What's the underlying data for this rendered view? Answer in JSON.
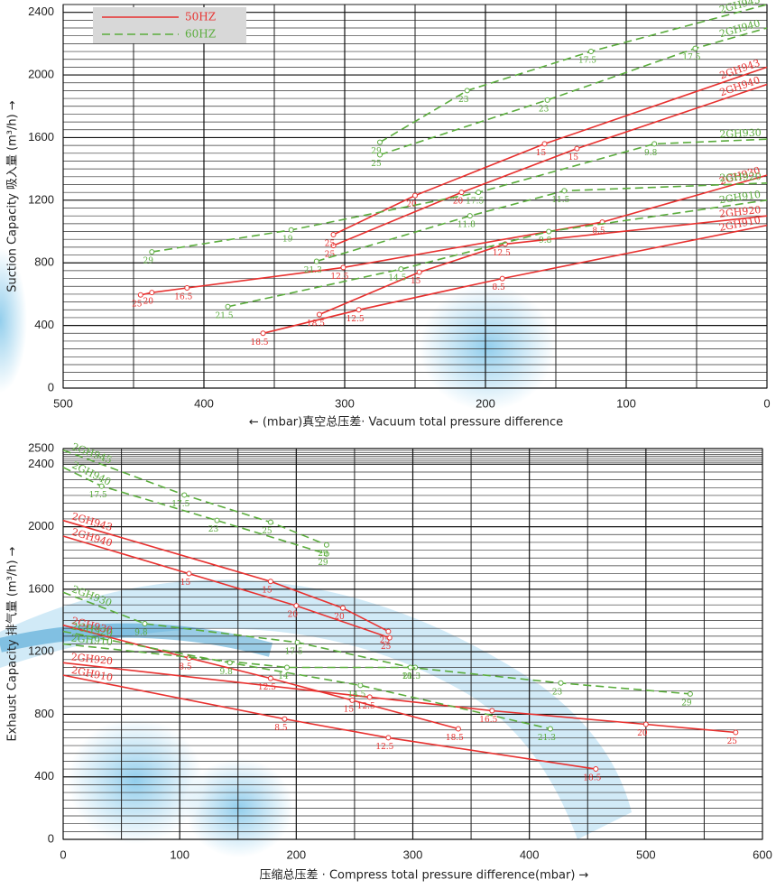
{
  "chart_data": [
    {
      "type": "line",
      "x_label": "← (mbar)真空总压差· Vacuum total pressure difference",
      "y_label": "Suction Capacity 吸入量 (m³/h) →",
      "xlim": [
        500,
        0
      ],
      "xticks": [
        500,
        400,
        300,
        200,
        100,
        0
      ],
      "ylim": [
        0,
        2450
      ],
      "yticks": [
        0,
        400,
        800,
        1200,
        1600,
        2000,
        2400
      ],
      "x_minor": 2,
      "y_minor": 8,
      "grid": true,
      "series_name_at": "end",
      "legend": {
        "position": "top-left",
        "entries": [
          {
            "name": "50HZ",
            "color": "#e8312f",
            "dashed": false
          },
          {
            "name": "60HZ",
            "color": "#5aac3c",
            "dashed": true
          }
        ]
      },
      "series": [
        {
          "name": "2GH910",
          "color": "#e8312f",
          "dashed": false,
          "x": [
            358,
            290,
            188,
            0
          ],
          "values": [
            350,
            500,
            700,
            1040
          ],
          "point_labels": [
            "18.5",
            "12.5",
            "8.5",
            null
          ]
        },
        {
          "name": "2GH920",
          "color": "#e8312f",
          "dashed": false,
          "x": [
            318,
            247,
            186,
            0
          ],
          "values": [
            470,
            740,
            920,
            1100
          ],
          "point_labels": [
            "18.5",
            "15",
            "12.5",
            null
          ]
        },
        {
          "name": "2GH930",
          "color": "#e8312f",
          "dashed": false,
          "x": [
            445,
            437,
            412,
            301,
            117,
            0
          ],
          "values": [
            595,
            610,
            640,
            770,
            1060,
            1360
          ],
          "point_labels": [
            "25",
            "20",
            "16.5",
            "12.5",
            "8.5",
            null
          ]
        },
        {
          "name": "2GH940",
          "color": "#e8312f",
          "dashed": false,
          "x": [
            308,
            217,
            135,
            0
          ],
          "values": [
            910,
            1250,
            1530,
            1940
          ],
          "point_labels": [
            "25",
            "20",
            "15",
            null
          ]
        },
        {
          "name": "2GH943",
          "color": "#e8312f",
          "dashed": false,
          "x": [
            308,
            250,
            158,
            0
          ],
          "values": [
            980,
            1230,
            1560,
            2050
          ],
          "point_labels": [
            "25",
            "20",
            "15",
            null
          ]
        },
        {
          "name": "2GH910",
          "color": "#5aac3c",
          "dashed": true,
          "x": [
            383,
            260,
            155,
            0
          ],
          "values": [
            520,
            760,
            1000,
            1200
          ],
          "point_labels": [
            "21.5",
            "14.5",
            "9.8",
            null
          ]
        },
        {
          "name": "2GH920",
          "color": "#5aac3c",
          "dashed": true,
          "x": [
            320,
            211,
            144,
            0
          ],
          "values": [
            810,
            1100,
            1260,
            1310
          ],
          "point_labels": [
            "21.3",
            "11.8",
            "11.5",
            null
          ]
        },
        {
          "name": "2GH930",
          "color": "#5aac3c",
          "dashed": true,
          "x": [
            437,
            338,
            205,
            80,
            0
          ],
          "values": [
            870,
            1010,
            1250,
            1560,
            1590
          ],
          "point_labels": [
            "29",
            "19",
            "17.5",
            "9.8",
            null
          ]
        },
        {
          "name": "2GH940",
          "color": "#5aac3c",
          "dashed": true,
          "x": [
            275,
            156,
            51,
            0
          ],
          "values": [
            1490,
            1840,
            2170,
            2300
          ],
          "point_labels": [
            "25",
            "23",
            "17.5",
            null
          ]
        },
        {
          "name": "2GH945",
          "color": "#5aac3c",
          "dashed": true,
          "x": [
            275,
            213,
            125,
            0
          ],
          "values": [
            1570,
            1900,
            2150,
            2450
          ],
          "point_labels": [
            "29",
            "23",
            "17.5",
            null
          ]
        }
      ]
    },
    {
      "type": "line",
      "x_label": "压缩总压差 · Compress total pressure difference(mbar)  →",
      "y_label": "Exhaust Capacity 排气量 (m³/h) →",
      "xlim": [
        0,
        600
      ],
      "xticks": [
        0,
        100,
        200,
        300,
        400,
        500,
        600
      ],
      "ylim": [
        0,
        2500
      ],
      "yticks": [
        0,
        400,
        800,
        1200,
        1600,
        2000,
        2400,
        2500
      ],
      "x_minor": 2,
      "y_minor": 8,
      "grid": true,
      "series_name_at": "start",
      "series": [
        {
          "name": "2GH910",
          "color": "#e8312f",
          "dashed": false,
          "x": [
            0,
            190,
            279,
            457
          ],
          "values": [
            1050,
            770,
            650,
            450
          ],
          "point_labels": [
            null,
            "8.5",
            "12.5",
            "18.5"
          ]
        },
        {
          "name": "2GH920",
          "color": "#e8312f",
          "dashed": false,
          "x": [
            0,
            263,
            368,
            500,
            577
          ],
          "values": [
            1130,
            910,
            823,
            736,
            684
          ],
          "point_labels": [
            null,
            "12.5",
            "16.5",
            "20",
            "25"
          ]
        },
        {
          "name": "2GH930",
          "color": "#e8312f",
          "dashed": false,
          "x": [
            0,
            108,
            178,
            248,
            339
          ],
          "values": [
            1370,
            1160,
            1030,
            890,
            707
          ],
          "point_labels": [
            null,
            "8.5",
            "12.5",
            "15",
            "18.5"
          ]
        },
        {
          "name": "2GH940",
          "color": "#e8312f",
          "dashed": false,
          "x": [
            0,
            108,
            200,
            280
          ],
          "values": [
            1940,
            1700,
            1495,
            1290
          ],
          "point_labels": [
            null,
            "15",
            "20",
            "25"
          ]
        },
        {
          "name": "2GH943",
          "color": "#e8312f",
          "dashed": false,
          "x": [
            0,
            178,
            240,
            279
          ],
          "values": [
            2040,
            1650,
            1480,
            1330
          ],
          "point_labels": [
            null,
            "15",
            "20",
            "25"
          ]
        },
        {
          "name": "2GH910",
          "color": "#5aac3c",
          "dashed": true,
          "x": [
            0,
            192,
            302
          ],
          "values": [
            1250,
            1100,
            1100
          ],
          "point_labels": [
            null,
            "14",
            "21.3"
          ]
        },
        {
          "name": "2GH920",
          "color": "#5aac3c",
          "dashed": true,
          "x": [
            0,
            143,
            255,
            418
          ],
          "values": [
            1330,
            1130,
            985,
            707
          ],
          "point_labels": [
            null,
            "9.8",
            "14.5",
            "21.3"
          ]
        },
        {
          "name": "2GH930",
          "color": "#5aac3c",
          "dashed": true,
          "x": [
            0,
            70,
            201,
            298,
            427,
            538
          ],
          "values": [
            1580,
            1380,
            1260,
            1100,
            1000,
            930
          ],
          "point_labels": [
            null,
            "9.8",
            "17.5",
            "18",
            "23",
            "29"
          ]
        },
        {
          "name": "2GH940",
          "color": "#5aac3c",
          "dashed": true,
          "x": [
            0,
            33,
            132,
            226
          ],
          "values": [
            2380,
            2260,
            2040,
            1826
          ],
          "point_labels": [
            null,
            "17.5",
            "23",
            "29"
          ]
        },
        {
          "name": "2GH945",
          "color": "#5aac3c",
          "dashed": true,
          "x": [
            0,
            104,
            178,
            226
          ],
          "values": [
            2490,
            2203,
            2029,
            1884
          ],
          "point_labels": [
            null,
            "17.5",
            "25",
            "29"
          ]
        }
      ]
    }
  ]
}
